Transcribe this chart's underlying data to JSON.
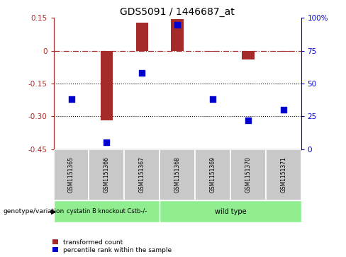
{
  "title": "GDS5091 / 1446687_at",
  "samples": [
    "GSM1151365",
    "GSM1151366",
    "GSM1151367",
    "GSM1151368",
    "GSM1151369",
    "GSM1151370",
    "GSM1151371"
  ],
  "transformed_count": [
    0.0,
    -0.32,
    0.13,
    0.145,
    -0.005,
    -0.04,
    -0.005
  ],
  "percentile_rank": [
    38,
    5,
    58,
    95,
    38,
    22,
    30
  ],
  "ylim_left": [
    -0.45,
    0.15
  ],
  "ylim_right": [
    0,
    100
  ],
  "yticks_left": [
    0.15,
    0.0,
    -0.15,
    -0.3,
    -0.45
  ],
  "yticks_right": [
    100,
    75,
    50,
    25,
    0
  ],
  "ytick_labels_left": [
    "0.15",
    "0",
    "-0.15",
    "-0.30",
    "-0.45"
  ],
  "ytick_labels_right": [
    "100%",
    "75",
    "50",
    "25",
    "0"
  ],
  "dotted_hlines": [
    -0.15,
    -0.3
  ],
  "group1_label": "cystatin B knockout Cstb-/-",
  "group2_label": "wild type",
  "group1_color": "#90ee90",
  "group2_color": "#90ee90",
  "bar_color": "#a52a2a",
  "dot_color": "#0000cd",
  "legend_label_bar": "transformed count",
  "legend_label_dot": "percentile rank within the sample",
  "bar_width": 0.35,
  "dot_size": 30,
  "sample_box_color": "#c8c8c8",
  "genotype_label": "genotype/variation"
}
